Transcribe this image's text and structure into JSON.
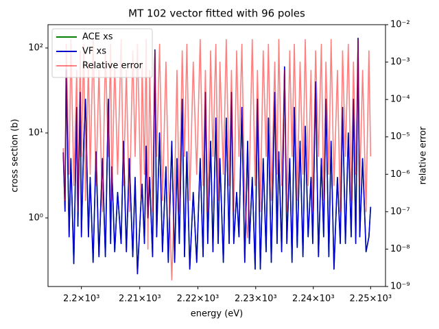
{
  "chart_data": {
    "type": "line",
    "title": "MT 102 vector fitted with 96 poles",
    "xlabel": "energy (eV)",
    "ylabel": "cross section (b)",
    "y2label": "relative error",
    "xscale": "log",
    "yscale": "log",
    "y2scale": "log",
    "ycolor": "#0000ff",
    "y2color": "#ff0000",
    "legend": "upper left",
    "xlim": [
      2194.3,
      2252.6
    ],
    "ylim": [
      0.156,
      188
    ],
    "y2lim": [
      1e-09,
      0.01
    ],
    "xticks": [
      {
        "value": 2200,
        "label": "2.2×10³"
      },
      {
        "value": 2210,
        "label": "2.21×10³"
      },
      {
        "value": 2220,
        "label": "2.22×10³"
      },
      {
        "value": 2230,
        "label": "2.23×10³"
      },
      {
        "value": 2240,
        "label": "2.24×10³"
      },
      {
        "value": 2250,
        "label": "2.25×10³"
      }
    ],
    "yticks": [
      {
        "value": 1,
        "label": "10⁰"
      },
      {
        "value": 10,
        "label": "10¹"
      },
      {
        "value": 100,
        "label": "10²"
      }
    ],
    "y2ticks": [
      {
        "value": 1e-09,
        "label": "10⁻⁹"
      },
      {
        "value": 1e-08,
        "label": "10⁻⁸"
      },
      {
        "value": 1e-07,
        "label": "10⁻⁷"
      },
      {
        "value": 1e-06,
        "label": "10⁻⁶"
      },
      {
        "value": 1e-05,
        "label": "10⁻⁵"
      },
      {
        "value": 0.0001,
        "label": "10⁻⁴"
      },
      {
        "value": 0.001,
        "label": "10⁻³"
      },
      {
        "value": 0.01,
        "label": "10⁻²"
      }
    ],
    "x": [
      2196.9,
      2197.2,
      2197.4,
      2197.9,
      2198.2,
      2198.7,
      2199.2,
      2199.4,
      2199.8,
      2200.0,
      2200.4,
      2200.7,
      2201.2,
      2201.5,
      2202.0,
      2202.5,
      2203.0,
      2203.6,
      2204.1,
      2204.6,
      2205.0,
      2205.2,
      2205.7,
      2206.2,
      2206.8,
      2207.2,
      2207.7,
      2208.2,
      2208.8,
      2209.2,
      2209.6,
      2210.2,
      2210.4,
      2210.8,
      2211.1,
      2211.4,
      2211.7,
      2212.2,
      2212.6,
      2212.9,
      2213.4,
      2213.9,
      2214.5,
      2214.9,
      2215.5,
      2216.0,
      2216.4,
      2216.8,
      2217.3,
      2217.7,
      2218.1,
      2218.6,
      2219.2,
      2219.8,
      2220.4,
      2220.9,
      2221.3,
      2221.7,
      2222.2,
      2222.6,
      2223.1,
      2223.5,
      2223.8,
      2224.4,
      2224.9,
      2225.4,
      2225.8,
      2226.2,
      2226.7,
      2227.1,
      2227.6,
      2228.1,
      2228.6,
      2228.9,
      2229.4,
      2229.9,
      2230.3,
      2230.8,
      2231.3,
      2231.8,
      2232.2,
      2232.7,
      2233.3,
      2233.7,
      2234.0,
      2234.5,
      2235.0,
      2235.4,
      2235.9,
      2236.3,
      2236.7,
      2237.2,
      2237.7,
      2238.2,
      2238.6,
      2239.1,
      2239.6,
      2239.9,
      2240.4,
      2240.9,
      2241.4,
      2241.8,
      2242.2,
      2242.7,
      2243.1,
      2243.6,
      2244.2,
      2244.7,
      2245.1,
      2245.6,
      2246.1,
      2246.6,
      2247.0,
      2247.4,
      2247.8,
      2248.1,
      2248.6,
      2249.2,
      2249.7,
      2250.0
    ],
    "series": [
      {
        "name": "ACE xs",
        "color": "#008000",
        "values": [
          5.9,
          1.2,
          55,
          0.6,
          5,
          0.29,
          20,
          0.8,
          30,
          0.6,
          8,
          25,
          0.6,
          3,
          0.3,
          6,
          0.35,
          5,
          0.35,
          25,
          0.5,
          4,
          0.4,
          2,
          0.5,
          8,
          0.4,
          5,
          0.35,
          3,
          0.22,
          1.5,
          2.5,
          0.5,
          7,
          1,
          3,
          0.35,
          95,
          0.6,
          10,
          0.4,
          4,
          0.3,
          8,
          0.3,
          5,
          0.5,
          25,
          0.35,
          6,
          0.25,
          2,
          0.3,
          5,
          0.35,
          30,
          0.5,
          8,
          0.4,
          15,
          0.5,
          5,
          0.3,
          15,
          0.5,
          30,
          0.5,
          2,
          0.6,
          20,
          0.3,
          8,
          0.5,
          3,
          0.25,
          25,
          0.25,
          5,
          0.4,
          15,
          0.3,
          30,
          0.5,
          6,
          0.4,
          60,
          0.5,
          5,
          0.3,
          20,
          0.45,
          8,
          0.35,
          12,
          0.6,
          3,
          0.5,
          40,
          0.35,
          5,
          0.6,
          25,
          0.35,
          8,
          0.25,
          3,
          0.5,
          20,
          0.5,
          10,
          0.6,
          25,
          0.5,
          130,
          0.6,
          5,
          0.4,
          0.6,
          1.35
        ]
      },
      {
        "name": "VF xs",
        "color": "#0000cc",
        "values": [
          5.9,
          1.2,
          55,
          0.6,
          5,
          0.29,
          20,
          0.8,
          30,
          0.6,
          8,
          25,
          0.6,
          3,
          0.3,
          6,
          0.35,
          5,
          0.35,
          25,
          0.5,
          4,
          0.4,
          2,
          0.5,
          8,
          0.4,
          5,
          0.35,
          3,
          0.22,
          1.5,
          2.5,
          0.5,
          7,
          1,
          3,
          0.35,
          95,
          0.6,
          10,
          0.4,
          4,
          0.3,
          8,
          0.3,
          5,
          0.5,
          25,
          0.35,
          6,
          0.25,
          2,
          0.3,
          5,
          0.35,
          30,
          0.5,
          8,
          0.4,
          15,
          0.5,
          5,
          0.3,
          15,
          0.5,
          30,
          0.5,
          2,
          0.6,
          20,
          0.3,
          8,
          0.5,
          3,
          0.25,
          25,
          0.25,
          5,
          0.4,
          15,
          0.3,
          30,
          0.5,
          6,
          0.4,
          60,
          0.5,
          5,
          0.3,
          20,
          0.45,
          8,
          0.35,
          12,
          0.6,
          3,
          0.5,
          40,
          0.35,
          5,
          0.6,
          25,
          0.35,
          8,
          0.25,
          3,
          0.5,
          20,
          0.5,
          10,
          0.6,
          25,
          0.5,
          130,
          0.6,
          5,
          0.4,
          0.6,
          1.35
        ]
      },
      {
        "name": "Relative error",
        "color": "#ff0000",
        "opacity": 0.5,
        "axis": "y2",
        "values": [
          5e-06,
          2e-07,
          0.003,
          1e-06,
          0.004,
          5e-07,
          0.0006,
          1e-07,
          0.002,
          3e-06,
          0.003,
          2e-07,
          0.001,
          1e-06,
          0.004,
          5e-07,
          0.0006,
          1e-07,
          0.002,
          3e-06,
          0.003,
          2e-07,
          0.001,
          1e-06,
          0.004,
          5e-07,
          0.0006,
          1e-07,
          0.002,
          3e-06,
          0.003,
          2e-07,
          0.001,
          1e-06,
          0.004,
          1e-08,
          0.0006,
          1e-07,
          0.002,
          3e-06,
          0.003,
          2e-07,
          0.001,
          1e-06,
          1.5e-09,
          5e-07,
          0.0006,
          1e-07,
          0.002,
          3e-06,
          0.003,
          2e-07,
          0.001,
          1e-06,
          0.004,
          5e-07,
          0.0006,
          1e-07,
          0.002,
          3e-06,
          0.003,
          2e-07,
          0.001,
          1e-06,
          0.004,
          5e-07,
          0.0006,
          1e-07,
          0.002,
          3e-06,
          0.003,
          2e-07,
          2e-08,
          1e-06,
          0.004,
          5e-07,
          0.0006,
          1e-07,
          0.002,
          3e-06,
          0.003,
          2e-07,
          0.001,
          1e-06,
          0.004,
          5e-07,
          0.0006,
          1e-07,
          0.002,
          3e-06,
          0.003,
          2e-07,
          0.001,
          1e-06,
          0.004,
          5e-07,
          0.0006,
          1e-07,
          0.002,
          3e-06,
          0.003,
          2e-07,
          0.001,
          1e-06,
          0.004,
          5e-07,
          0.0006,
          1e-07,
          0.002,
          3e-06,
          0.003,
          2e-07,
          0.001,
          1e-06,
          0.004,
          5e-07,
          0.0006,
          1e-07,
          0.002,
          3e-06
        ]
      }
    ]
  }
}
